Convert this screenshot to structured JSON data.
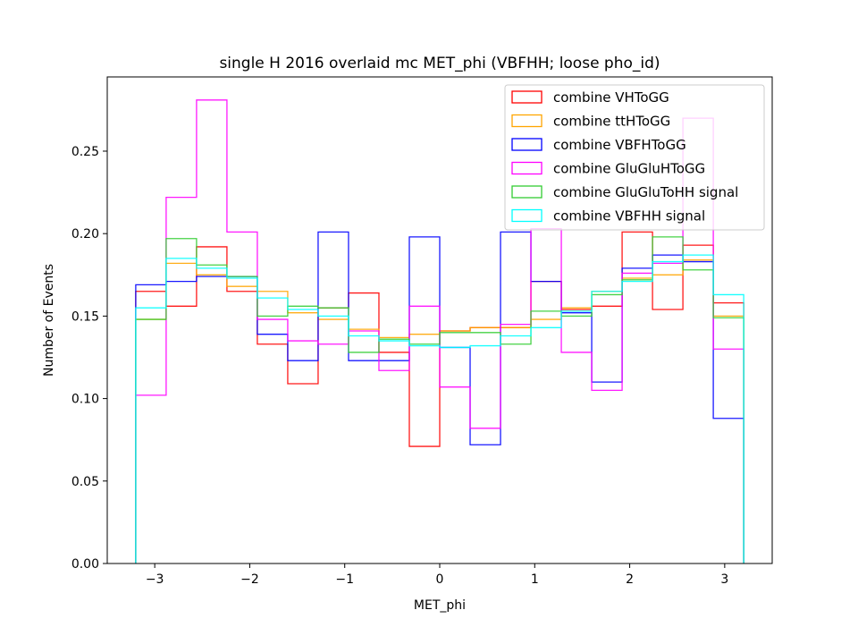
{
  "chart_data": {
    "type": "step-histogram",
    "title": "single H 2016 overlaid mc MET_phi (VBFHH; loose pho_id)",
    "xlabel": "MET_phi",
    "ylabel": "Number of Events",
    "xlim": [
      -3.5,
      3.5
    ],
    "ylim": [
      0,
      0.295
    ],
    "xticks": [
      -3,
      -2,
      -1,
      0,
      1,
      2,
      3
    ],
    "xtick_labels": [
      "−3",
      "−2",
      "−1",
      "0",
      "1",
      "2",
      "3"
    ],
    "yticks": [
      0.0,
      0.05,
      0.1,
      0.15,
      0.2,
      0.25
    ],
    "ytick_labels": [
      "0.00",
      "0.05",
      "0.10",
      "0.15",
      "0.20",
      "0.25"
    ],
    "legend_position": "top-right",
    "bin_edges": [
      -3.2,
      -2.88,
      -2.56,
      -2.24,
      -1.92,
      -1.6,
      -1.28,
      -0.96,
      -0.64,
      -0.32,
      0.0,
      0.32,
      0.64,
      0.96,
      1.28,
      1.6,
      1.92,
      2.24,
      2.56,
      2.88,
      3.2
    ],
    "series": [
      {
        "name": "combine VHToGG",
        "color": "#ff0000",
        "values": [
          0.165,
          0.156,
          0.192,
          0.165,
          0.133,
          0.109,
          0.155,
          0.164,
          0.128,
          0.071,
          0.141,
          0.143,
          0.143,
          0.171,
          0.154,
          0.156,
          0.201,
          0.154,
          0.193,
          0.158
        ]
      },
      {
        "name": "combine ttHToGG",
        "color": "#ffa500",
        "values": [
          0.148,
          0.182,
          0.175,
          0.168,
          0.165,
          0.152,
          0.148,
          0.142,
          0.137,
          0.139,
          0.141,
          0.143,
          0.143,
          0.148,
          0.155,
          0.165,
          0.173,
          0.175,
          0.184,
          0.15
        ]
      },
      {
        "name": "combine VBFHToGG",
        "color": "#0000ff",
        "values": [
          0.169,
          0.171,
          0.174,
          0.174,
          0.139,
          0.123,
          0.201,
          0.123,
          0.123,
          0.198,
          0.131,
          0.072,
          0.201,
          0.171,
          0.152,
          0.11,
          0.179,
          0.187,
          0.183,
          0.088
        ]
      },
      {
        "name": "combine GluGluHToGG",
        "color": "#ff00ff",
        "values": [
          0.102,
          0.222,
          0.281,
          0.201,
          0.148,
          0.135,
          0.133,
          0.141,
          0.117,
          0.156,
          0.107,
          0.082,
          0.145,
          0.203,
          0.128,
          0.105,
          0.176,
          0.182,
          0.27,
          0.13
        ]
      },
      {
        "name": "combine GluGluToHH signal",
        "color": "#32cd32",
        "values": [
          0.148,
          0.197,
          0.181,
          0.174,
          0.15,
          0.156,
          0.155,
          0.128,
          0.136,
          0.133,
          0.14,
          0.14,
          0.133,
          0.153,
          0.15,
          0.163,
          0.172,
          0.198,
          0.178,
          0.149
        ]
      },
      {
        "name": "combine VBFHH signal",
        "color": "#00ffff",
        "values": [
          0.155,
          0.185,
          0.179,
          0.173,
          0.161,
          0.154,
          0.15,
          0.138,
          0.135,
          0.132,
          0.131,
          0.132,
          0.138,
          0.143,
          0.153,
          0.165,
          0.171,
          0.183,
          0.187,
          0.163
        ]
      }
    ]
  }
}
